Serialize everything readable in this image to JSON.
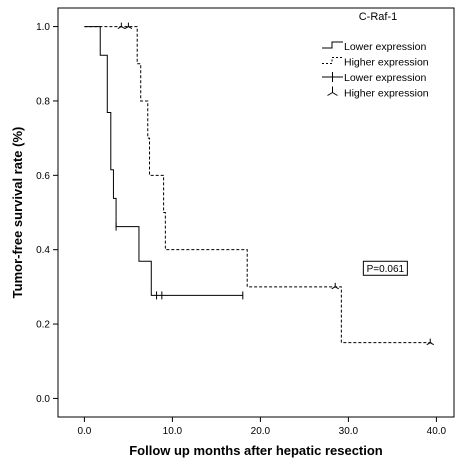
{
  "chart_data": {
    "type": "line",
    "subtype": "kaplan-meier",
    "title": "",
    "xlabel": "Follow up months after hepatic resection",
    "ylabel": "Tumor-free survival rate (%)",
    "xlim": [
      -3,
      42
    ],
    "ylim": [
      -0.05,
      1.05
    ],
    "x_ticks": [
      0,
      10,
      20,
      30,
      40
    ],
    "x_tick_labels": [
      "0.0",
      "10.0",
      "20.0",
      "30.0",
      "40.0"
    ],
    "y_ticks": [
      0,
      0.2,
      0.4,
      0.6,
      0.8,
      1.0
    ],
    "y_tick_labels": [
      "0.0",
      "0.2",
      "0.4",
      "0.6",
      "0.8",
      "1.0"
    ],
    "grid": false,
    "legend": {
      "title": "C-Raf-1",
      "placement": "top-right",
      "entries": [
        "Lower expression",
        "Higher expression",
        "Lower expression",
        "Higher expression"
      ]
    },
    "series": [
      {
        "name": "Lower expression",
        "style": "solid",
        "color": "#000000",
        "steps": [
          [
            0,
            1.0
          ],
          [
            1.8,
            0.923
          ],
          [
            2.6,
            0.769
          ],
          [
            3.0,
            0.615
          ],
          [
            3.3,
            0.538
          ],
          [
            3.6,
            0.462
          ],
          [
            6.2,
            0.369
          ],
          [
            7.6,
            0.277
          ],
          [
            18.0,
            0.277
          ]
        ],
        "censored": [
          [
            3.6,
            0.462
          ],
          [
            8.2,
            0.277
          ],
          [
            8.8,
            0.277
          ],
          [
            18.0,
            0.277
          ]
        ]
      },
      {
        "name": "Higher expression",
        "style": "dashed",
        "color": "#000000",
        "steps": [
          [
            0,
            1.0
          ],
          [
            6.0,
            0.9
          ],
          [
            6.4,
            0.8
          ],
          [
            7.2,
            0.7
          ],
          [
            7.4,
            0.6
          ],
          [
            9.0,
            0.5
          ],
          [
            9.2,
            0.4
          ],
          [
            18.5,
            0.3
          ],
          [
            29.2,
            0.15
          ],
          [
            39.5,
            0.15
          ]
        ],
        "censored": [
          [
            4.2,
            1.0
          ],
          [
            5.0,
            1.0
          ],
          [
            28.5,
            0.3
          ],
          [
            39.3,
            0.15
          ]
        ]
      }
    ],
    "annotations": [
      {
        "text": "P=0.061",
        "x": 34.2,
        "y": 0.35
      }
    ]
  }
}
